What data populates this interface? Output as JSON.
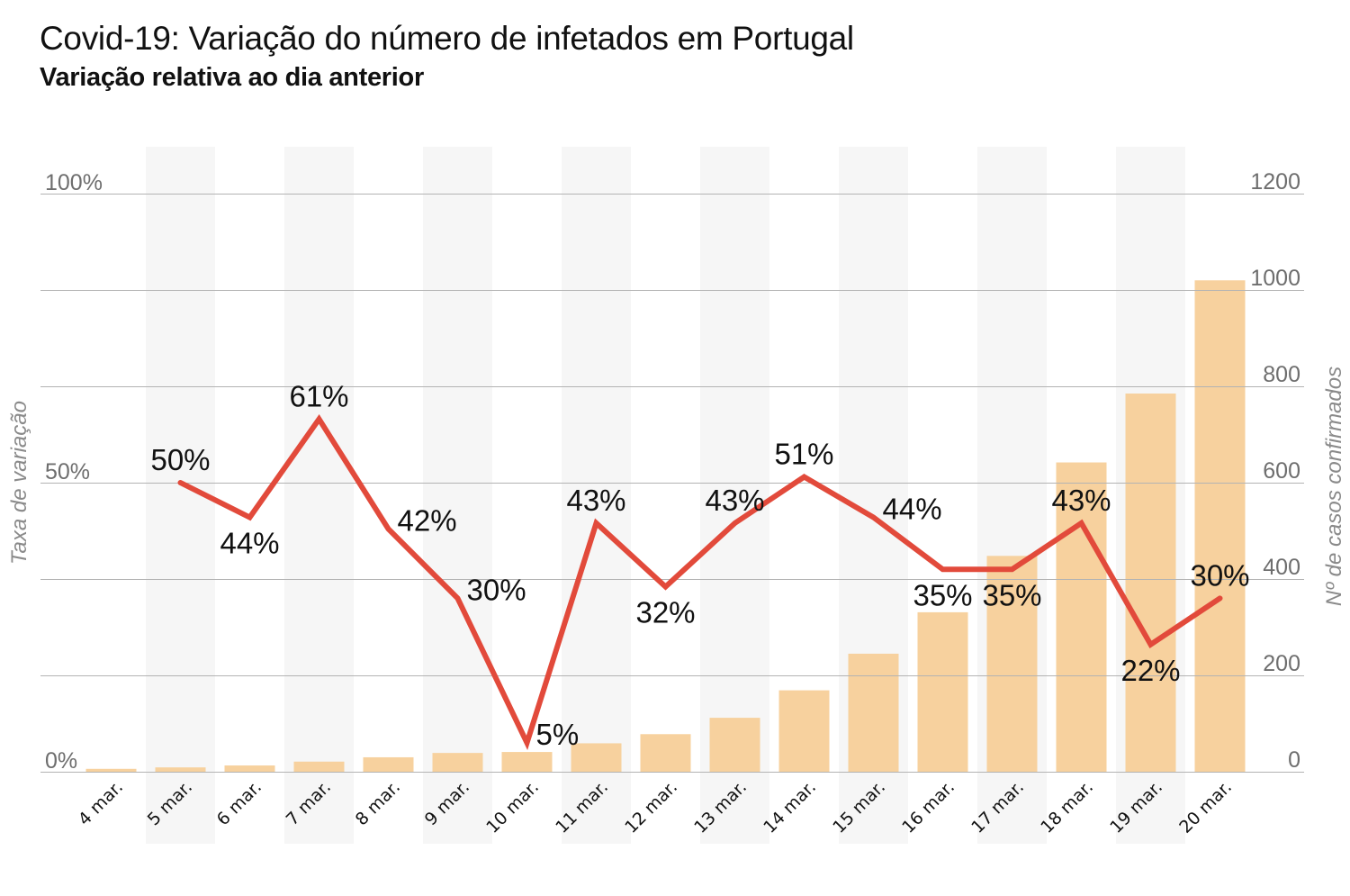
{
  "header": {
    "title": "Covid-19: Variação do número de infetados em Portugal",
    "subtitle": "Variação relativa ao dia anterior"
  },
  "colors": {
    "bar": "#f7d19e",
    "line": "#e24a3b",
    "band": "#f6f6f6",
    "grid": "#b3b3b3",
    "tick_text": "#6e6e6e",
    "axis_title": "#8a8a8a",
    "label_text": "#111111"
  },
  "chart_data": {
    "type": "bar+line",
    "title": "Covid-19: Variação do número de infetados em Portugal",
    "subtitle": "Variação relativa ao dia anterior",
    "categories": [
      "4 mar.",
      "5 mar.",
      "6 mar.",
      "7 mar.",
      "8 mar.",
      "9 mar.",
      "10 mar.",
      "11 mar.",
      "12 mar.",
      "13 mar.",
      "14 mar.",
      "15 mar.",
      "16 mar.",
      "17 mar.",
      "18 mar.",
      "19 mar.",
      "20 mar."
    ],
    "series": [
      {
        "name": "Nº de casos confirmados",
        "type": "bar",
        "axis": "right",
        "values": [
          6,
          9,
          13,
          21,
          30,
          39,
          41,
          59,
          78,
          112,
          169,
          245,
          331,
          448,
          642,
          785,
          1020
        ]
      },
      {
        "name": "Taxa de variação",
        "type": "line",
        "axis": "left",
        "values": [
          null,
          50,
          44,
          61,
          42,
          30,
          5,
          43,
          32,
          43,
          51,
          44,
          35,
          35,
          43,
          22,
          30
        ],
        "labels": [
          null,
          "50%",
          "44%",
          "61%",
          "42%",
          "30%",
          "5%",
          "43%",
          "32%",
          "43%",
          "51%",
          "44%",
          "35%",
          "35%",
          "43%",
          "22%",
          "30%"
        ],
        "label_placement": [
          null,
          "above",
          "below",
          "above",
          "right",
          "right",
          "right",
          "above",
          "below",
          "above",
          "above",
          "right",
          "below",
          "below",
          "above",
          "below",
          "above"
        ]
      }
    ],
    "left_axis": {
      "title": "Taxa de variação",
      "range": [
        0,
        100
      ],
      "ticks": [
        {
          "value": 0,
          "label": "0%"
        },
        {
          "value": 50,
          "label": "50%"
        },
        {
          "value": 100,
          "label": "100%"
        }
      ]
    },
    "right_axis": {
      "title": "Nº de casos confirmados",
      "range": [
        0,
        1200
      ],
      "ticks": [
        {
          "value": 0,
          "label": "0"
        },
        {
          "value": 200,
          "label": "200"
        },
        {
          "value": 400,
          "label": "400"
        },
        {
          "value": 600,
          "label": "600"
        },
        {
          "value": 800,
          "label": "800"
        },
        {
          "value": 1000,
          "label": "1000"
        },
        {
          "value": 1200,
          "label": "1200"
        }
      ]
    },
    "grid": true,
    "alternating_column_bands": true,
    "legend": "none"
  }
}
